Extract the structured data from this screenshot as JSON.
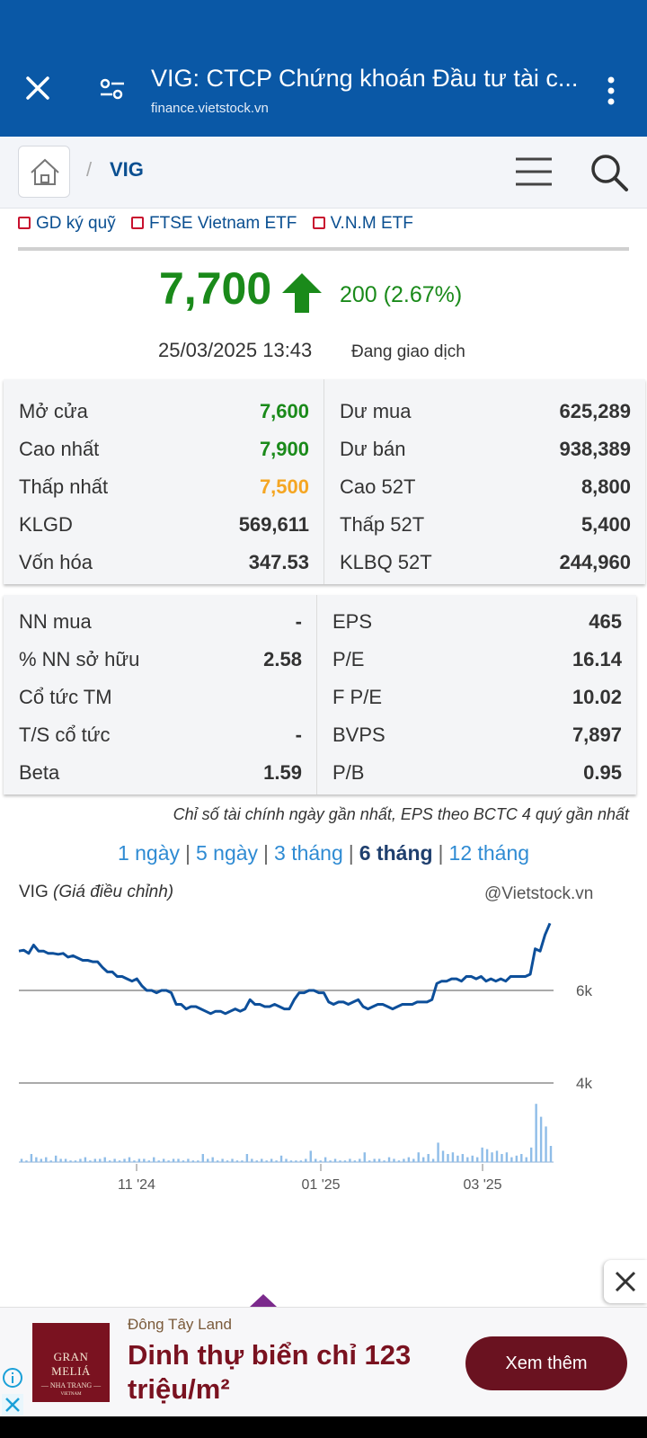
{
  "browser": {
    "title": "VIG: CTCP Chứng khoán Đầu tư tài c...",
    "url": "finance.vietstock.vn"
  },
  "nav": {
    "separator": "/",
    "crumb": "VIG"
  },
  "tags": [
    {
      "label": "GD ký quỹ"
    },
    {
      "label": "FTSE Vietnam ETF"
    },
    {
      "label": "V.N.M ETF"
    }
  ],
  "quote": {
    "price": "7,700",
    "change": "200 (2.67%)",
    "timestamp": "25/03/2025 13:43",
    "status": "Đang giao dịch"
  },
  "colors": {
    "up": "#1a8a1a",
    "low": "#f5a623",
    "brand": "#0a58a6",
    "line": "#0d4f9a",
    "volume": "#8fbde8"
  },
  "stats1": {
    "left": [
      {
        "label": "Mở cửa",
        "value": "7,600",
        "color": "#1a8a1a"
      },
      {
        "label": "Cao nhất",
        "value": "7,900",
        "color": "#1a8a1a"
      },
      {
        "label": "Thấp nhất",
        "value": "7,500",
        "color": "#f5a623"
      },
      {
        "label": "KLGD",
        "value": "569,611",
        "color": "#333333"
      },
      {
        "label": "Vốn hóa",
        "value": "347.53",
        "color": "#333333"
      }
    ],
    "right": [
      {
        "label": "Dư mua",
        "value": "625,289"
      },
      {
        "label": "Dư bán",
        "value": "938,389"
      },
      {
        "label": "Cao 52T",
        "value": "8,800"
      },
      {
        "label": "Thấp 52T",
        "value": "5,400"
      },
      {
        "label": "KLBQ 52T",
        "value": "244,960"
      }
    ]
  },
  "stats2": {
    "left": [
      {
        "label": "NN mua",
        "value": "-"
      },
      {
        "label": "% NN sở hữu",
        "value": "2.58"
      },
      {
        "label": "Cổ tức TM",
        "value": ""
      },
      {
        "label": "T/S cổ tức",
        "value": "-"
      },
      {
        "label": "Beta",
        "value": "1.59"
      }
    ],
    "right": [
      {
        "label": "EPS",
        "value": "465"
      },
      {
        "label": "P/E",
        "value": "16.14"
      },
      {
        "label": "F P/E",
        "value": "10.02"
      },
      {
        "label": "BVPS",
        "value": "7,897"
      },
      {
        "label": "P/B",
        "value": "0.95"
      }
    ]
  },
  "footnote": "Chỉ số tài chính ngày gần nhất, EPS theo BCTC 4 quý gần nhất",
  "periods": [
    {
      "label": "1 ngày",
      "active": false
    },
    {
      "label": "5 ngày",
      "active": false
    },
    {
      "label": "3 tháng",
      "active": false
    },
    {
      "label": "6 tháng",
      "active": true
    },
    {
      "label": "12 tháng",
      "active": false
    }
  ],
  "chart_header": {
    "symbol": "VIG",
    "note": "(Giá điều chỉnh)",
    "credit": "@Vietstock.vn"
  },
  "chart_data": {
    "type": "line",
    "x_ticks": [
      "11 '24",
      "01 '25",
      "03 '25"
    ],
    "y_ticks": [
      "6k",
      "4k"
    ],
    "ylim": [
      4000,
      7800
    ],
    "grid": true,
    "series": [
      {
        "values": [
          6850,
          6870,
          6800,
          6980,
          6850,
          6850,
          6800,
          6800,
          6780,
          6800,
          6720,
          6750,
          6700,
          6650,
          6650,
          6620,
          6620,
          6500,
          6400,
          6400,
          6300,
          6300,
          6250,
          6200,
          6250,
          6100,
          6000,
          6000,
          5950,
          6000,
          6000,
          5950,
          5700,
          5700,
          5600,
          5650,
          5650,
          5600,
          5550,
          5500,
          5550,
          5550,
          5500,
          5550,
          5600,
          5550,
          5600,
          5800,
          5700,
          5700,
          5650,
          5650,
          5700,
          5650,
          5600,
          5600,
          5800,
          5950,
          5950,
          6000,
          6000,
          5950,
          5950,
          5750,
          5700,
          5750,
          5750,
          5700,
          5750,
          5800,
          5650,
          5600,
          5650,
          5700,
          5700,
          5650,
          5600,
          5650,
          5700,
          5700,
          5700,
          5750,
          5750,
          5750,
          5800,
          6150,
          6200,
          6200,
          6250,
          6250,
          6200,
          6300,
          6300,
          6250,
          6300,
          6200,
          6250,
          6200,
          6250,
          6200,
          6300,
          6300,
          6300,
          6300,
          6350,
          6900,
          6850,
          7200,
          7450
        ]
      }
    ],
    "volume": [
      0.2,
      0.1,
      0.5,
      0.3,
      0.2,
      0.3,
      0.1,
      0.4,
      0.2,
      0.2,
      0.1,
      0.1,
      0.2,
      0.3,
      0.1,
      0.2,
      0.2,
      0.3,
      0.1,
      0.2,
      0.1,
      0.2,
      0.3,
      0.1,
      0.2,
      0.2,
      0.1,
      0.3,
      0.1,
      0.2,
      0.1,
      0.2,
      0.2,
      0.1,
      0.2,
      0.1,
      0.1,
      0.5,
      0.2,
      0.3,
      0.1,
      0.2,
      0.1,
      0.2,
      0.1,
      0.1,
      0.5,
      0.2,
      0.1,
      0.2,
      0.1,
      0.2,
      0.1,
      0.4,
      0.2,
      0.1,
      0.1,
      0.1,
      0.2,
      0.7,
      0.2,
      0.1,
      0.3,
      0.1,
      0.2,
      0.1,
      0.1,
      0.2,
      0.1,
      0.2,
      0.6,
      0.1,
      0.2,
      0.2,
      0.1,
      0.3,
      0.2,
      0.1,
      0.2,
      0.3,
      0.2,
      0.6,
      0.3,
      0.5,
      0.2,
      1.2,
      0.7,
      0.5,
      0.6,
      0.4,
      0.5,
      0.3,
      0.4,
      0.3,
      0.9,
      0.8,
      0.6,
      0.7,
      0.5,
      0.6,
      0.3,
      0.4,
      0.5,
      0.3,
      0.9,
      3.6,
      2.8,
      2.2,
      1.0
    ]
  },
  "ad": {
    "logo_line1": "GRAN MELIÁ",
    "logo_line2": "— NHA TRANG —",
    "logo_line3": "VIETNAM",
    "brand": "Đông Tây Land",
    "headline": "Dinh thự biển chỉ 123 triệu/m²",
    "cta": "Xem thêm"
  }
}
